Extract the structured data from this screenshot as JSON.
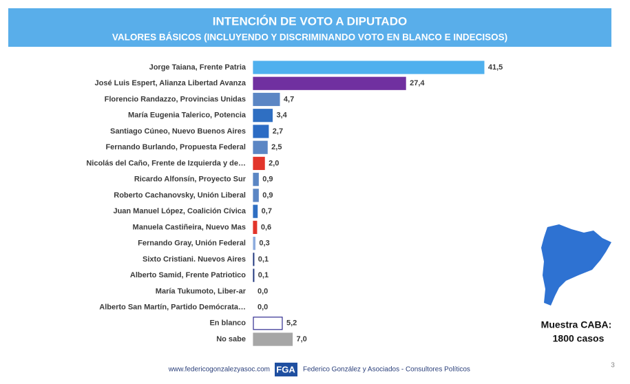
{
  "chart_data": {
    "type": "bar",
    "orientation": "horizontal",
    "title": "INTENCIÓN DE VOTO A DIPUTADO",
    "subtitle": "VALORES BÁSICOS (INCLUYENDO Y DISCRIMINANDO VOTO EN BLANCO E INDECISOS)",
    "categories": [
      "Jorge Taiana, Frente Patria",
      "José Luis Espert, Alianza Libertad Avanza",
      "Florencio Randazzo, Provincias Unidas",
      "María Eugenia Talerico, Potencia",
      "Santiago Cúneo, Nuevo Buenos Aires",
      "Fernando Burlando, Propuesta Federal",
      "Nicolás del Caño, Frente de Izquierda y de…",
      "Ricardo Alfonsín, Proyecto Sur",
      "Roberto Cachanovsky, Unión Liberal",
      "Juan Manuel López, Coalición Cívica",
      "Manuela Castiñeira, Nuevo Mas",
      "Fernando Gray, Unión Federal",
      "Sixto Cristiani. Nuevos Aires",
      "Alberto Samid, Frente Patriotico",
      "María Tukumoto, Liber-ar",
      "Alberto San Martín, Partido Demócrata…",
      "En blanco",
      "No sabe"
    ],
    "values": [
      41.5,
      27.4,
      4.7,
      3.4,
      2.7,
      2.5,
      2.0,
      0.9,
      0.9,
      0.7,
      0.6,
      0.3,
      0.1,
      0.1,
      0.0,
      0.0,
      5.2,
      7.0
    ],
    "value_labels": [
      "41,5",
      "27,4",
      "4,7",
      "3,4",
      "2,7",
      "2,5",
      "2,0",
      "0,9",
      "0,9",
      "0,7",
      "0,6",
      "0,3",
      "0,1",
      "0,1",
      "0,0",
      "0,0",
      "5,2",
      "7,0"
    ],
    "colors": [
      "#4fb0ee",
      "#7030a0",
      "#5b86c4",
      "#2f6fc2",
      "#2c6cc4",
      "#5b86c4",
      "#e2352b",
      "#5b86c4",
      "#5b86c4",
      "#2f6fc2",
      "#e2352b",
      "#8eadde",
      "#22397f",
      "#22397f",
      "#ffffff",
      "#ffffff",
      "#ffffff",
      "#a6a6a6"
    ],
    "edgecolors": [
      "#4fb0ee",
      "#7030a0",
      "#5b86c4",
      "#2f6fc2",
      "#2c6cc4",
      "#5b86c4",
      "#e2352b",
      "#5b86c4",
      "#5b86c4",
      "#2f6fc2",
      "#e2352b",
      "#8eadde",
      "#22397f",
      "#22397f",
      "#2f2b8f",
      "#2f2b8f",
      "#2f2b8f",
      "#a6a6a6"
    ]
  },
  "sample_note": [
    "Muestra CABA:",
    "1800 casos"
  ],
  "footer": {
    "url": "www.federicogonzalezyasoc.com",
    "logo": "FGA",
    "company": "Federico González y Asociados - Consultores Políticos",
    "page_number": "3"
  }
}
